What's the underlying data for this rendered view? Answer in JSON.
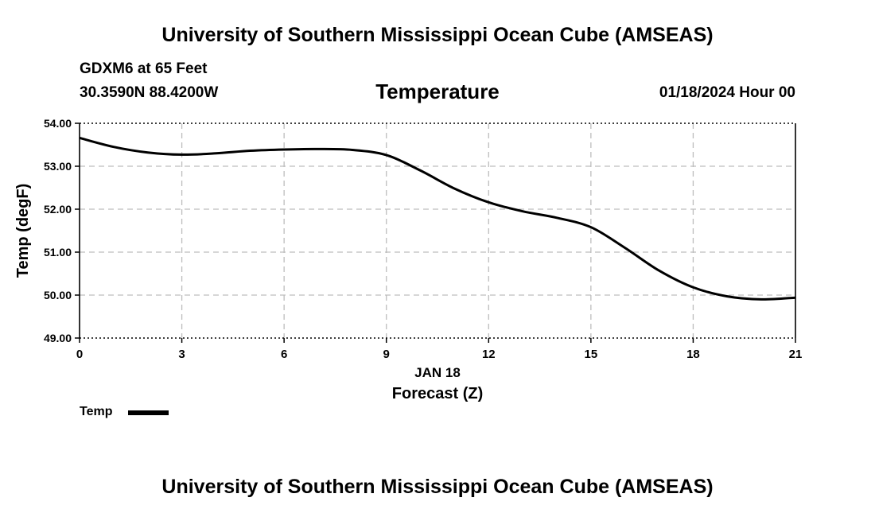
{
  "header": {
    "main_title": "University of Southern Mississippi Ocean Cube (AMSEAS)",
    "station": "GDXM6 at 65 Feet",
    "coordinates": "30.3590N  88.4200W",
    "variable_title": "Temperature",
    "date": "01/18/2024 Hour 00"
  },
  "footer": {
    "main_title": "University of Southern Mississippi Ocean Cube (AMSEAS)"
  },
  "legend": {
    "label": "Temp",
    "color": "#000000"
  },
  "chart_data": {
    "type": "line",
    "title": "Temperature",
    "xlabel": "Forecast (Z)",
    "ylabel": "Temp (degF)",
    "date_label": "JAN 18",
    "xlim": [
      0,
      21
    ],
    "ylim": [
      49.0,
      54.0
    ],
    "x_ticks": [
      0,
      3,
      6,
      9,
      12,
      15,
      18,
      21
    ],
    "y_ticks": [
      49.0,
      50.0,
      51.0,
      52.0,
      53.0,
      54.0
    ],
    "y_tick_labels": [
      "49.00",
      "50.00",
      "51.00",
      "52.00",
      "53.00",
      "54.00"
    ],
    "grid": true,
    "series": [
      {
        "name": "Temp",
        "color": "#000000",
        "x": [
          0,
          1,
          2,
          3,
          4,
          5,
          6,
          7,
          8,
          9,
          10,
          11,
          12,
          13,
          14,
          15,
          16,
          17,
          18,
          19,
          20,
          21
        ],
        "values": [
          53.66,
          53.45,
          53.32,
          53.27,
          53.3,
          53.36,
          53.39,
          53.4,
          53.38,
          53.26,
          52.9,
          52.48,
          52.16,
          51.95,
          51.8,
          51.58,
          51.1,
          50.57,
          50.18,
          49.97,
          49.9,
          49.94
        ]
      }
    ]
  }
}
